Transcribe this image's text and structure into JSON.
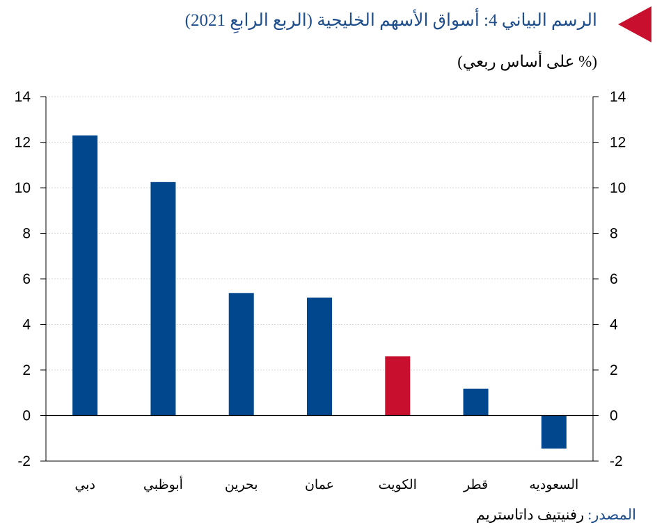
{
  "title": "الرسم البياني 4: أسواق الأسهم الخليجية (الربع الرابعِ 2021)",
  "subtitle": "(% على أساس ربعي)",
  "source": {
    "label": "المصدر:",
    "value": "رفنيتيف داتاستريم"
  },
  "colors": {
    "primary": "#00478e",
    "highlight": "#c8102e",
    "title": "#1f4e8c"
  },
  "chart_data": {
    "type": "bar",
    "categories": [
      "دبي",
      "أبوظبي",
      "بحرين",
      "عمان",
      "الكويت",
      "قطر",
      "السعوديه"
    ],
    "values": [
      12.3,
      10.25,
      5.38,
      5.18,
      2.6,
      1.18,
      -1.45
    ],
    "highlight_index": 4,
    "ylim": [
      -2,
      14
    ],
    "yticks": [
      14,
      12,
      10,
      8,
      6,
      4,
      2,
      0,
      -2
    ],
    "grid": true,
    "dual_y_axis": true,
    "title": "الرسم البياني 4: أسواق الأسهم الخليجية (الربع الرابعِ 2021)",
    "ylabel": "(% على أساس ربعي)",
    "xlabel": ""
  }
}
